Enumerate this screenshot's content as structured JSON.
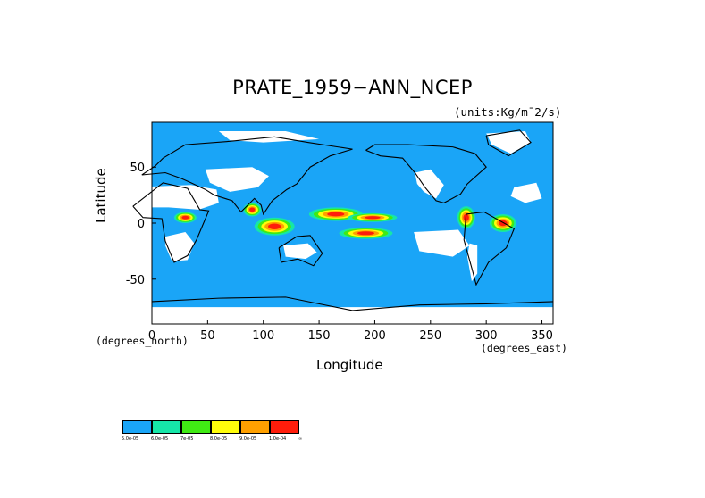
{
  "chart_data": {
    "type": "heatmap",
    "title": "PRATE_1959−ANN_NCEP",
    "units_note": "(units:Kg/m¯2/s)",
    "xlabel": "Longitude",
    "ylabel": "Latitude",
    "x_unit_label": "(degrees_east)",
    "y_unit_label": "(degrees_north)",
    "xlim": [
      0,
      360
    ],
    "ylim": [
      -90,
      90
    ],
    "x_ticks": [
      0,
      50,
      100,
      150,
      200,
      250,
      300,
      350
    ],
    "y_ticks": [
      50,
      0,
      -50
    ],
    "legend": {
      "colors": [
        "#1aa5f7",
        "#16e6a8",
        "#40ea14",
        "#fffd0b",
        "#ffa000",
        "#ff1d0b"
      ],
      "labels": [
        "5.0e-05",
        "6.0e-05",
        "7e-05",
        "8.0e-05",
        "9.0e-05",
        "1.0e-04",
        "∞"
      ]
    },
    "features": [
      {
        "name": "warm-pool-maximum",
        "lon": 165,
        "lat": 8,
        "level": 6
      },
      {
        "name": "central-pacific-maximum",
        "lon": 198,
        "lat": 5,
        "level": 6
      },
      {
        "name": "spcz-maximum",
        "lon": 192,
        "lat": -9,
        "level": 6
      },
      {
        "name": "panama-maximum",
        "lon": 282,
        "lat": 5,
        "level": 6
      },
      {
        "name": "amazon-maximum",
        "lon": 315,
        "lat": 0,
        "level": 6
      },
      {
        "name": "congo-maximum",
        "lon": 30,
        "lat": 5,
        "level": 6
      }
    ]
  }
}
